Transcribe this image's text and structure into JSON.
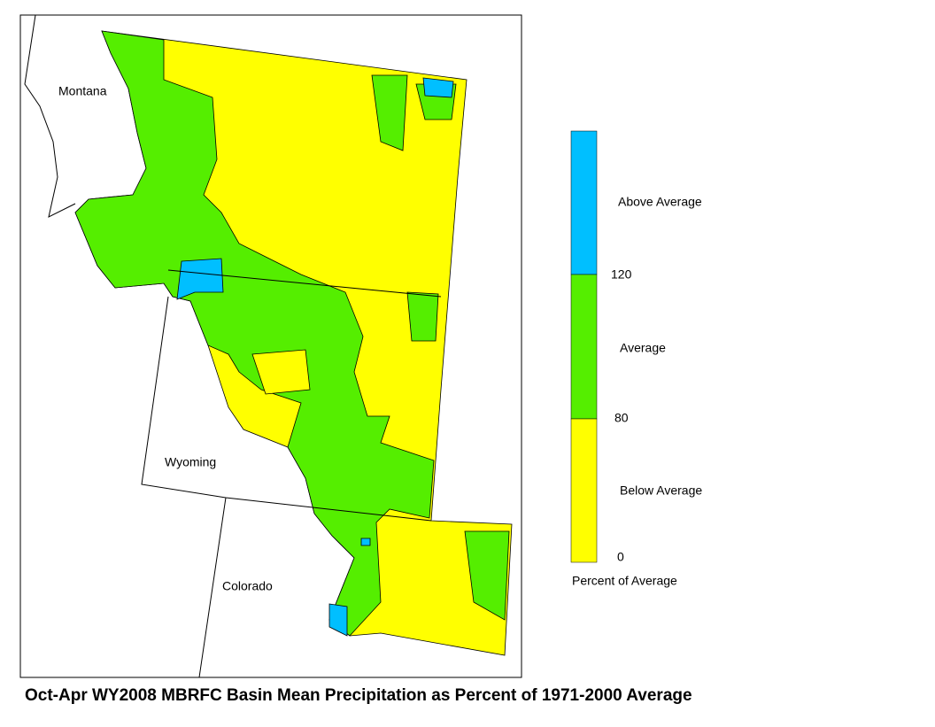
{
  "map": {
    "title": "Oct-Apr WY2008 MBRFC Basin Mean Precipitation as Percent of 1971-2000 Average",
    "state_labels": [
      "Montana",
      "Wyoming",
      "Colorado"
    ],
    "legend": {
      "title": "Percent of Average",
      "classes": [
        {
          "label": "Below Average",
          "color": "#ffff00"
        },
        {
          "label": "Average",
          "color": "#55ee00"
        },
        {
          "label": "Above Average",
          "color": "#00bfff"
        }
      ],
      "breaks": [
        0,
        80,
        120
      ]
    }
  }
}
